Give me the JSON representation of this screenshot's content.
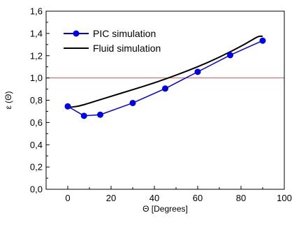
{
  "chart_data": {
    "type": "line",
    "title": "",
    "xlabel": "Θ [Degrees]",
    "ylabel": "ε (Θ)",
    "xlim": [
      -10,
      100
    ],
    "ylim": [
      0.0,
      1.6
    ],
    "xticks": [
      0,
      20,
      40,
      60,
      80,
      100
    ],
    "xtick_labels": [
      "0",
      "20",
      "40",
      "60",
      "80",
      "100"
    ],
    "yticks": [
      0.0,
      0.2,
      0.4,
      0.6,
      0.8,
      1.0,
      1.2,
      1.4,
      1.6
    ],
    "ytick_labels": [
      "0,0",
      "0,2",
      "0,4",
      "0,6",
      "0,8",
      "1,0",
      "1,2",
      "1,4",
      "1,6"
    ],
    "grid": false,
    "legend_position": "top-left",
    "reference_line": {
      "y": 1.0,
      "color": "#e05050"
    },
    "series": [
      {
        "name": "PIC simulation",
        "color": "#0000ee",
        "marker": "circle",
        "x": [
          0,
          7.5,
          15,
          30,
          45,
          60,
          75,
          90
        ],
        "y": [
          0.745,
          0.66,
          0.67,
          0.775,
          0.905,
          1.055,
          1.205,
          1.335
        ]
      },
      {
        "name": "Fluid simulation",
        "color": "#000000",
        "marker": "none",
        "x": [
          0,
          5,
          10,
          20,
          30,
          40,
          50,
          60,
          70,
          80,
          85,
          88,
          90
        ],
        "y": [
          0.735,
          0.745,
          0.775,
          0.835,
          0.895,
          0.955,
          1.025,
          1.1,
          1.185,
          1.285,
          1.34,
          1.375,
          1.375
        ]
      }
    ]
  }
}
